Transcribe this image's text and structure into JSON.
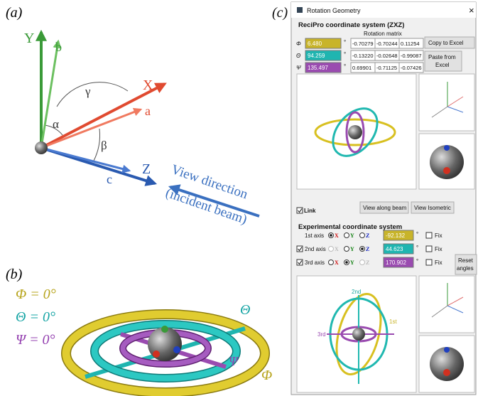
{
  "panel_a": {
    "label": "(a)",
    "Y": "Y",
    "b": "b",
    "X": "X",
    "a": "a",
    "Z": "Z",
    "c": "c",
    "angles": [
      "γ",
      "α",
      "β"
    ],
    "view_text": [
      "View direction",
      "(incident beam)"
    ]
  },
  "panel_b": {
    "label": "(b)",
    "equations": [
      "Φ = 0°",
      "Θ = 0°",
      "Ψ = 0°"
    ],
    "equation_colors": [
      "#b7a41c",
      "#17a5a5",
      "#9440b0"
    ],
    "ring_labels": [
      "Θ",
      "Ψ",
      "Φ"
    ]
  },
  "panel_c": {
    "label": "(c)",
    "window_title": "Rotation Geometry",
    "close": "×",
    "recipro_heading": "ReciPro coordinate system (ZXZ)",
    "matrix_heading": "Rotation matrix",
    "angles": [
      {
        "symbol": "Φ",
        "value": "6.480",
        "color": "#c8b42a"
      },
      {
        "symbol": "Θ",
        "value": "94.259",
        "color": "#1fb5b0"
      },
      {
        "symbol": "Ψ",
        "value": "135.497",
        "color": "#9a4bb0"
      }
    ],
    "degree": "°",
    "matrix": [
      [
        "-0.70279",
        "-0.70244",
        "0.11254"
      ],
      [
        "-0.13220",
        "-0.02648",
        "-0.99087"
      ],
      [
        "0.69901",
        "-0.71125",
        "-0.07426"
      ]
    ],
    "copy_button": "Copy to Excel",
    "paste_button": [
      "Paste from",
      "Excel"
    ],
    "link": "Link",
    "view_beam_button": "View along beam",
    "view_iso_button": "View Isometric",
    "experimental_heading": "Experimental coordinate system",
    "axis_options": [
      "X",
      "Y",
      "Z"
    ],
    "axis_option_colors": [
      "#d01010",
      "#108010",
      "#1020c0"
    ],
    "axes": [
      {
        "name": "1st axis",
        "checkbox": null,
        "selected": 0,
        "disabled": null,
        "value": "-92.132",
        "color": "#c8b42a"
      },
      {
        "name": "2nd axis",
        "checkbox": true,
        "selected": 2,
        "disabled": 0,
        "value": "44.623",
        "color": "#1fb5b0"
      },
      {
        "name": "3rd axis",
        "checkbox": true,
        "selected": 1,
        "disabled": 2,
        "value": "170.902",
        "color": "#9a4bb0"
      }
    ],
    "fix": "Fix",
    "reset_button": [
      "Reset",
      "angles"
    ],
    "viewer_labels": [
      "2nd",
      "1st",
      "3rd"
    ]
  }
}
